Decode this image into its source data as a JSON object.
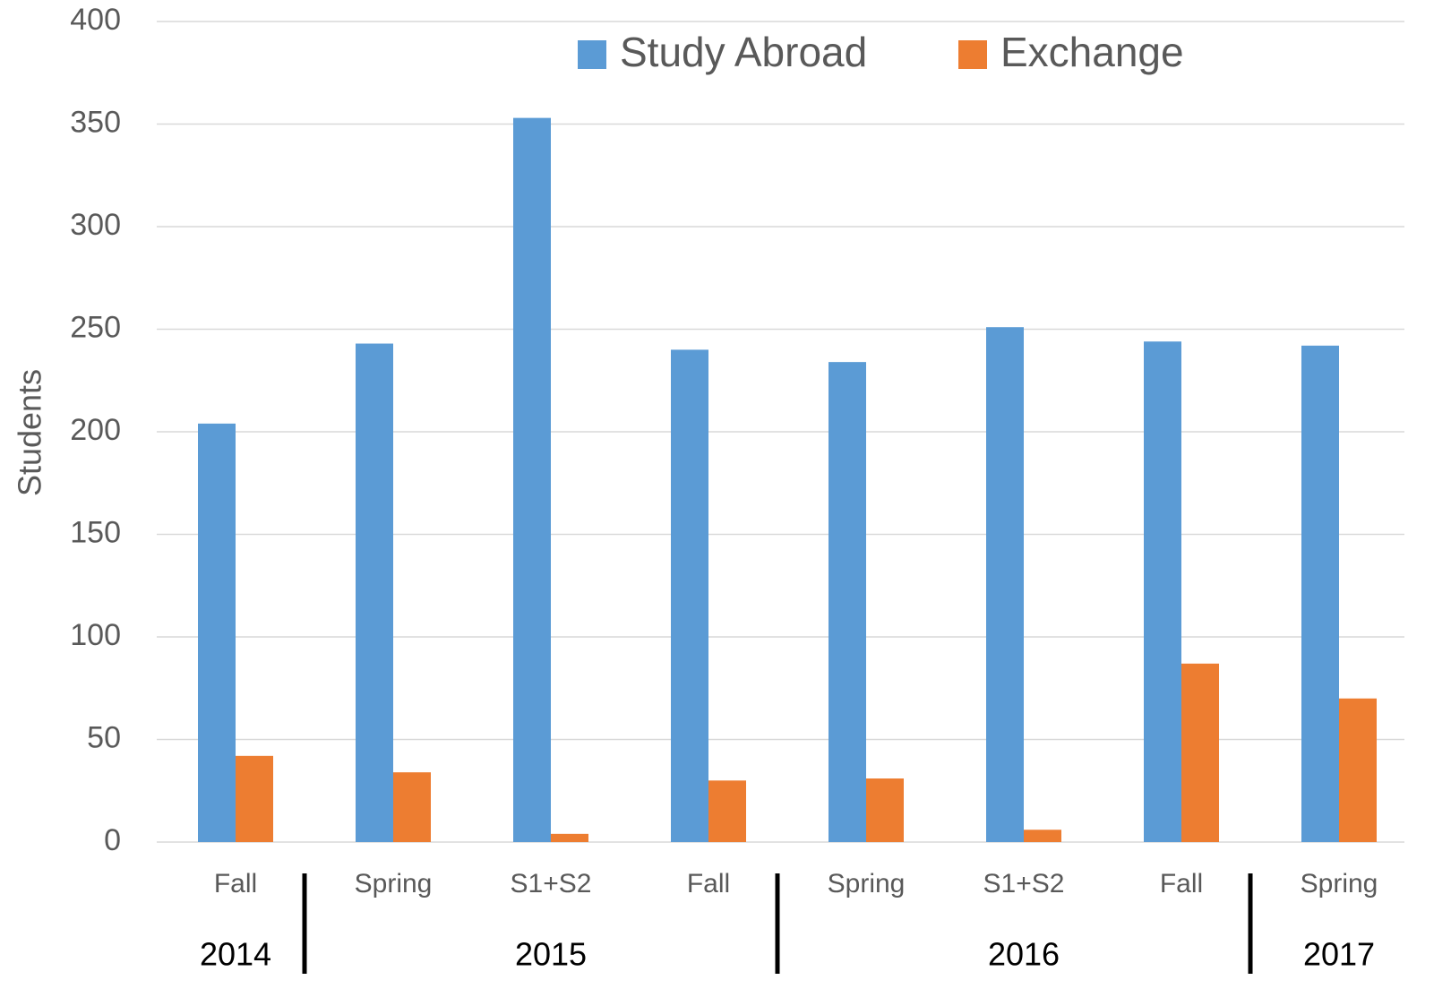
{
  "chart_data": {
    "type": "bar",
    "y_label": "Students",
    "categories": [
      "Fall",
      "Spring",
      "S1+S2",
      "Fall",
      "Spring",
      "S1+S2",
      "Fall",
      "Spring"
    ],
    "year_groups": [
      {
        "label": "2014",
        "span": 1
      },
      {
        "label": "2015",
        "span": 3
      },
      {
        "label": "2016",
        "span": 3
      },
      {
        "label": "2017",
        "span": 1
      }
    ],
    "series": [
      {
        "name": "Study Abroad",
        "color": "#5b9bd5",
        "values": [
          204,
          243,
          353,
          240,
          234,
          251,
          244,
          242
        ]
      },
      {
        "name": "Exchange",
        "color": "#ed7d31",
        "values": [
          42,
          34,
          4,
          30,
          31,
          6,
          87,
          70
        ]
      }
    ],
    "ylim": [
      0,
      400
    ],
    "yticks": [
      0,
      50,
      100,
      150,
      200,
      250,
      300,
      350,
      400
    ],
    "grid": true,
    "legend": "top"
  }
}
